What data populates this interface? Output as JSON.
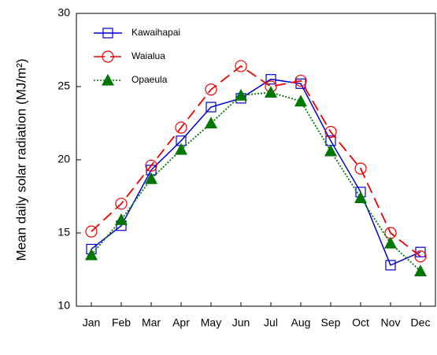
{
  "chart_data": {
    "type": "line",
    "y_label": "Mean daily solar radiation (MJ/m²)",
    "categories": [
      "Jan",
      "Feb",
      "Mar",
      "Apr",
      "May",
      "Jun",
      "Jul",
      "Aug",
      "Sep",
      "Oct",
      "Nov",
      "Dec"
    ],
    "series": [
      {
        "name": "Kawaihapai",
        "color": "#0000cc",
        "marker": "square",
        "line_style": "solid",
        "values": [
          13.9,
          15.5,
          19.3,
          21.3,
          23.6,
          24.2,
          25.5,
          25.2,
          21.3,
          17.8,
          12.8,
          13.7
        ]
      },
      {
        "name": "Waialua",
        "color": "#ee0000",
        "marker": "circle",
        "line_style": "dashed",
        "values": [
          15.1,
          17.0,
          19.6,
          22.2,
          24.8,
          26.4,
          25.0,
          25.4,
          21.9,
          19.4,
          15.0,
          13.4
        ]
      },
      {
        "name": "Opaeula",
        "color": "#007700",
        "marker": "triangle",
        "line_style": "dotted",
        "values": [
          13.5,
          15.9,
          18.7,
          20.7,
          22.5,
          24.4,
          24.6,
          24.0,
          20.6,
          17.4,
          14.3,
          12.4
        ]
      }
    ],
    "ylim": [
      10,
      30
    ],
    "yticks": [
      10,
      15,
      20,
      25,
      30
    ],
    "grid": false,
    "legend": "upper left"
  }
}
